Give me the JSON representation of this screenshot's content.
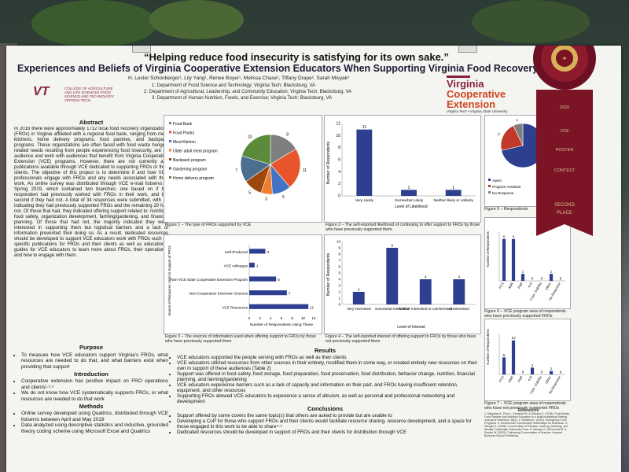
{
  "poster": {
    "quote": "“Helping reduce food insecurity is satisfying for its own sake.”",
    "title": "Experiences and Beliefs of Virginia Cooperative Extension Educators When Supporting Virginia Food Recovery Orga",
    "authors": "H. Lester Schonberger¹, Lily Yang¹, Renee Boyer¹, Melissa Chase¹, Tiffany Drape², Sarah Misyak³",
    "affiliations": [
      "1: Department of Food Science and Technology; Virginia Tech; Blacksburg, VA",
      "2: Department of Agricultural, Leadership, and Community Education; Virginia Tech; Blacksburg, VA",
      "3: Department of Human Nutrition, Foods, and Exercise; Virginia Tech; Blacksburg, VA"
    ],
    "logo_left_mark": "VT",
    "logo_left_sub": "COLLEGE OF AGRICULTURE AND LIFE SCIENCES FOOD SCIENCE AND TECHNOLOGY VIRGINIA TECH.",
    "logo_right_l1": "Virginia",
    "logo_right_l2": "Cooperative",
    "logo_right_l3": "Extension",
    "logo_right_sub": "Virginia Tech • Virginia State University"
  },
  "abstract": {
    "heading": "Abstract",
    "text": "In 2016 there were approximately 1712 local food recovery organizations (FROs) in Virginia affiliated with a regional food bank, ranging from meal kitchens, home delivery programs, food pantries, and backpack programs. These organizations are often faced with food waste hunger-related needs resulting from people experiencing food insecurity, are an audience and work with audiences that benefit from Virginia Cooperative Extension (VCE) programs. However, there are not currently any publications available through VCE dedicated to supporting FROs or their clients. The objective of this project is to determine if and how VCE professionals engage with FROs and any needs associated with their work. An online survey was distributed through VCE e-mail listservs in Spring 2019, which contained two branches: one based on if the respondent had previously worked with FROs in their work, and the second if they had not. A total of 34 responses were submitted, with 14 indicating they had previously supported FROs and the remaining 20 had not. Of those that had, they indicated offering support related to: nutrition, food safety, organization development, farming/gardening, and financial planning. Of those that had not, the majority indicated they were interested in supporting them but logistical barriers and a lack of information prevented their doing so. As a result, dedicated resources should be developed to support VCE educators work with FROs such as specific publications for FROs and their clients as well as educational guides for VCE educators to learn more about FROs, their operations, and how to engage with them."
  },
  "purpose": {
    "heading": "Purpose",
    "items": [
      "To measure how VCE educators support Virginia's FROs, what resources are needed to do that, and what barriers exist when providing that support"
    ]
  },
  "introduction": {
    "heading": "Introduction",
    "items": [
      "Cooperative extension has positive impact on FRO operations and clients¹·²·³",
      "We do not know how VCE systematically supports FROs, or what resources are needed to do that work"
    ]
  },
  "methods": {
    "heading": "Methods",
    "items": [
      "Online survey developed using Qualtrics, distributed through VCE listservs between April and May 2019",
      "Data analyzed using descriptive statistics and inductive, grounded theory coding scheme using Microsoft Excel and Qualtrics"
    ]
  },
  "results": {
    "heading": "Results",
    "items": [
      "VCE educators supported the people serving with FROs as well as their clients",
      "VCE educators utilized resources from other sources in their entirety, modified them in some way, or created entirely new resources on their own in support of these audiences (Table 2)",
      "Support was offered in food safety, food storage, food preparation, food preservation, food distribution, behavior change, nutrition, financial planning, and farming/gardening",
      "VCE educators experience barriers such as a lack of capacity and information on their part, and FROs having insufficient retention, equipment, and other resources",
      "Supporting FROs allowed VCE educators to experience a sense of altruism, as well as personal and professional networking and development"
    ]
  },
  "conclusions": {
    "heading": "Conclusions",
    "items": [
      "Support offered by some covers the same topic(s) that others are asked to provide but are unable to",
      "Developing a CoP for those who support FROs and their clients would facilitate resource sharing, resource development, and a space for those engaged in this work to be able to share⁴·⁵",
      "Dedicated resources should be developed in support of FROs and their clients for distribution through VCE"
    ]
  },
  "references": {
    "heading": "References",
    "text": "1. Misyakas A, Zhou L, Kaminski M, & Serrano E. (2018). Food Banks, Food Pantries and Nutrition Education in a Multi-Institutional Setting. Journal of Extension. 56(1). 2. Robbins K. (2019). Emergency Food Programs. 3. Zimmerman. Community Partnerships for Extension. 4. Wenger E. (1998). Communities of Practice: Learning, Meaning, and Identity. Cambridge University Press. 5. Wenger E, McDermott R, & Snyder W. (2002). Cultivating Communities of Practice. Harvard Business School Publishing."
  },
  "figures": {
    "fig1_caption": "Figure 1 – The type of FROs supported by VCE",
    "fig2_caption": "Figure 2 – The self-reported likelihood of continuing to offer support to FROs by those who have previously supported them",
    "fig3_caption": "Figure 3 – The sources of information used when offering support to FROs by those who have previously supported them",
    "fig4_caption": "Figure 4 – The self-reported interest of offering support to FROs by those who have not previously supported them",
    "fig5_caption": "Figure 5 – Respondents",
    "fig6_caption": "Figure 6 – VCE program area of respondents who have previously supported FROs",
    "fig7_caption": "Figure 7 – VCE program area of respondents who have not previously supported FROs"
  },
  "ribbon": {
    "year": "2020",
    "line1": "VCE",
    "line2": "POSTER",
    "line3": "CONTEST",
    "line4": "SECOND",
    "line5": "PLACE"
  },
  "chart_data": [
    {
      "id": "fig1",
      "type": "pie",
      "title": "",
      "categories": [
        "Food Bank",
        "Food Pantry",
        "Meal Kitchen",
        "Older adult meal program",
        "Backpack program",
        "Gardening program",
        "Home delivery program"
      ],
      "values": [
        8,
        11,
        5,
        3,
        5,
        7,
        10
      ],
      "colors": [
        "#7f7f7f",
        "#e8542b",
        "#4472c4",
        "#ed7d31",
        "#9e480e",
        "#4a6f8f",
        "#5a8a3a"
      ]
    },
    {
      "id": "fig2",
      "type": "bar",
      "categories": [
        "Very Likely",
        "Somewhat Likely",
        "Neither likely or unlikely"
      ],
      "values": [
        11,
        1,
        1
      ],
      "ylabel": "Number of Respondents",
      "xlabel": "Level of Likelihood",
      "ylim": [
        0,
        12
      ],
      "yticks": [
        0,
        2,
        4,
        6,
        8,
        10,
        12
      ]
    },
    {
      "id": "fig3",
      "type": "bar",
      "orientation": "horizontal",
      "categories": [
        "Self-Produced",
        "VCE colleague",
        "Non-VCE State Cooperative Extension Program",
        "Non-Cooperative Extension Sources",
        "VCE Resources"
      ],
      "values": [
        3,
        1,
        5,
        7,
        11
      ],
      "ylabel": "Source of Resources Used in Support of FROs",
      "xlabel": "Number of Respondents Using These",
      "xlim": [
        0,
        12
      ],
      "xticks": [
        0,
        2,
        4,
        6,
        8,
        10,
        12
      ]
    },
    {
      "id": "fig4",
      "type": "bar",
      "categories": [
        "Very interested",
        "Somewhat Interested",
        "Neither interested or uninterested",
        "Uninterested"
      ],
      "values": [
        2,
        9,
        4,
        4
      ],
      "ylabel": "Number of Respondents",
      "xlabel": "Level of Interest",
      "ylim": [
        0,
        10
      ],
      "yticks": [
        0,
        1,
        2,
        3,
        4,
        5,
        6,
        7,
        8,
        9,
        10
      ]
    },
    {
      "id": "fig5",
      "type": "pie",
      "categories": [
        "Agent",
        "Program Assistant",
        "No Response"
      ],
      "values": [
        10,
        3,
        1
      ],
      "colors": [
        "#2e3f8f",
        "#c0392b",
        "#7f7f7f"
      ]
    },
    {
      "id": "fig6",
      "type": "bar",
      "categories": [
        "FCS",
        "ANR",
        "FNP",
        "4-H",
        "Com. Viability",
        "Other",
        "No Response"
      ],
      "values": [
        6,
        6,
        1,
        0,
        0,
        1,
        0
      ],
      "ylabel": "Number of Respondents",
      "xlabel": "VCE Program Area",
      "ylim": [
        0,
        7
      ]
    },
    {
      "id": "fig7",
      "type": "bar",
      "categories": [
        "FCS",
        "ANR",
        "FNP",
        "4-H",
        "Com. Viability",
        "Other",
        "No Response"
      ],
      "values": [
        5,
        10,
        0,
        2,
        0,
        1,
        0
      ],
      "ylabel": "Number of Respondents",
      "xlabel": "VCE Program Area",
      "ylim": [
        0,
        12
      ]
    }
  ]
}
